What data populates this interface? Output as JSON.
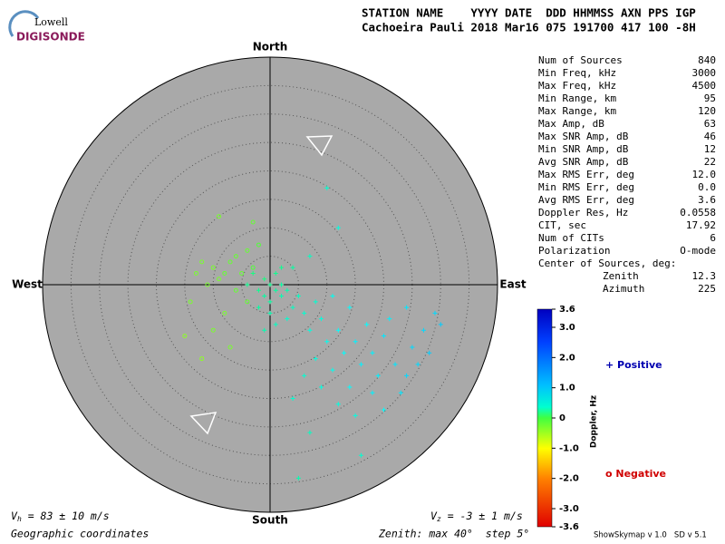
{
  "header": {
    "logo_top": "Lowell",
    "logo_bottom": "DIGISONDE",
    "line1": "STATION NAME    YYYY DATE  DDD HHMMSS AXN PPS IGP",
    "line2": "Cachoeira Pauli 2018 Mar16 075 191700 417 100 -8H"
  },
  "stats": [
    [
      "Num of Sources",
      "840"
    ],
    [
      "Min Freq, kHz",
      "3000"
    ],
    [
      "Max Freq, kHz",
      "4500"
    ],
    [
      "Min Range, km",
      "95"
    ],
    [
      "Max Range, km",
      "120"
    ],
    [
      "Max Amp, dB",
      "63"
    ],
    [
      "Max SNR Amp, dB",
      "46"
    ],
    [
      "Min SNR Amp, dB",
      "12"
    ],
    [
      "Avg SNR Amp, dB",
      "22"
    ],
    [
      "Max RMS Err, deg",
      "12.0"
    ],
    [
      "Min RMS Err, deg",
      "0.0"
    ],
    [
      "Avg RMS Err, deg",
      "3.6"
    ],
    [
      "Doppler Res, Hz",
      "0.0558"
    ],
    [
      "CIT, sec",
      "17.92"
    ],
    [
      "Num of CITs",
      "6"
    ],
    [
      "Polarization",
      "O-mode"
    ]
  ],
  "center": {
    "title": "Center of Sources, deg:",
    "rows": [
      [
        "Zenith",
        "12.3"
      ],
      [
        "Azimuth",
        "225"
      ]
    ]
  },
  "compass": {
    "north": "North",
    "south": "South",
    "west": "West",
    "east": "East"
  },
  "zenith_max": 40,
  "zenith_step": 5,
  "colorbar": {
    "label": "Doppler, Hz",
    "min": -3.6,
    "max": 3.6,
    "ticks": [
      {
        "value": 3.6,
        "label": "3.6"
      },
      {
        "value": 3,
        "label": "3.0"
      },
      {
        "value": 2,
        "label": "2.0"
      },
      {
        "value": 1,
        "label": "1.0"
      },
      0,
      {
        "value": -1,
        "label": "-1.0"
      },
      {
        "value": -2,
        "label": "-2.0"
      },
      {
        "value": -3,
        "label": "-3.0"
      },
      {
        "value": -3.6,
        "label": "-3.6"
      }
    ]
  },
  "legend": {
    "positive": "+ Positive",
    "negative": "o Negative"
  },
  "footer": {
    "vh_symbol": "V",
    "vh_sub": "h",
    "vh_text": " = 83 ± 10 m/s",
    "vz_symbol": "V",
    "vz_sub": "z",
    "vz_text": " = -3 ± 1 m/s",
    "coords": "Geographic coordinates",
    "zenith": "Zenith: max 40°  step 5°",
    "version": "ShowSkymap v 1.0   SD v 5.1"
  },
  "sources": [
    [
      0,
      0,
      0.5
    ],
    [
      1,
      -1,
      0.6
    ],
    [
      -1,
      1,
      0.4
    ],
    [
      2,
      -2,
      0.7
    ],
    [
      -2,
      -1,
      0.5
    ],
    [
      0,
      -3,
      0.6
    ],
    [
      3,
      -1,
      0.7
    ],
    [
      -3,
      2,
      0.4
    ],
    [
      1,
      2,
      0.5
    ],
    [
      4,
      -4,
      0.8
    ],
    [
      -1,
      -2,
      0.6
    ],
    [
      2,
      0,
      0.6
    ],
    [
      5,
      -2,
      0.8
    ],
    [
      0,
      -5,
      0.7
    ],
    [
      3,
      -6,
      0.9
    ],
    [
      -2,
      -4,
      0.6
    ],
    [
      6,
      -5,
      0.9
    ],
    [
      1,
      -7,
      0.8
    ],
    [
      -4,
      0,
      0.5
    ],
    [
      2,
      3,
      0.5
    ],
    [
      8,
      -3,
      0.9
    ],
    [
      4,
      3,
      0.6
    ],
    [
      -1,
      -8,
      0.7
    ],
    [
      7,
      -8,
      1.0
    ],
    [
      12,
      -8,
      1.2
    ],
    [
      15,
      -10,
      1.3
    ],
    [
      18,
      -12,
      1.3
    ],
    [
      20,
      -9,
      1.4
    ],
    [
      22,
      -14,
      1.4
    ],
    [
      25,
      -11,
      1.5
    ],
    [
      16,
      -14,
      1.3
    ],
    [
      13,
      -12,
      1.2
    ],
    [
      19,
      -16,
      1.3
    ],
    [
      24,
      -16,
      1.5
    ],
    [
      27,
      -8,
      1.5
    ],
    [
      21,
      -6,
      1.3
    ],
    [
      17,
      -7,
      1.2
    ],
    [
      11,
      -15,
      1.1
    ],
    [
      14,
      -18,
      1.2
    ],
    [
      23,
      -19,
      1.4
    ],
    [
      26,
      -14,
      1.5
    ],
    [
      28,
      -12,
      1.6
    ],
    [
      10,
      -10,
      1.1
    ],
    [
      9,
      -18,
      1.0
    ],
    [
      20,
      -22,
      1.2
    ],
    [
      15,
      -23,
      1.0
    ],
    [
      30,
      -7,
      1.6
    ],
    [
      29,
      -5,
      1.5
    ],
    [
      24,
      -4,
      1.4
    ],
    [
      18,
      -19,
      1.3
    ],
    [
      12,
      -21,
      1.0
    ],
    [
      8,
      -13,
      1.0
    ],
    [
      6,
      -16,
      0.9
    ],
    [
      4,
      -20,
      0.9
    ],
    [
      7,
      -26,
      0.8
    ],
    [
      16,
      -30,
      0.9
    ],
    [
      5,
      -34,
      0.7
    ],
    [
      11,
      -2,
      1.1
    ],
    [
      14,
      -4,
      1.2
    ],
    [
      9,
      -6,
      1.0
    ],
    [
      10,
      17,
      0.9
    ],
    [
      12,
      10,
      1.0
    ],
    [
      7,
      5,
      0.8
    ],
    [
      -10,
      3,
      -0.3
    ],
    [
      -8,
      2,
      -0.2
    ],
    [
      -12,
      4,
      -0.3
    ],
    [
      -6,
      5,
      -0.2
    ],
    [
      -9,
      1,
      -0.3
    ],
    [
      -5,
      2,
      -0.2
    ],
    [
      -11,
      0,
      -0.3
    ],
    [
      -7,
      4,
      -0.2
    ],
    [
      -4,
      6,
      -0.2
    ],
    [
      -3,
      3,
      -0.1
    ],
    [
      -13,
      2,
      -0.3
    ],
    [
      -6,
      -1,
      -0.2
    ],
    [
      -8,
      -5,
      -0.3
    ],
    [
      -10,
      -8,
      -0.3
    ],
    [
      -15,
      -9,
      -0.4
    ],
    [
      -12,
      -13,
      -0.4
    ],
    [
      -14,
      -3,
      -0.3
    ],
    [
      -4,
      -3,
      -0.2
    ],
    [
      -3,
      11,
      -0.2
    ],
    [
      -9,
      12,
      -0.3
    ],
    [
      -2,
      7,
      -0.1
    ],
    [
      -7,
      -11,
      -0.3
    ]
  ]
}
